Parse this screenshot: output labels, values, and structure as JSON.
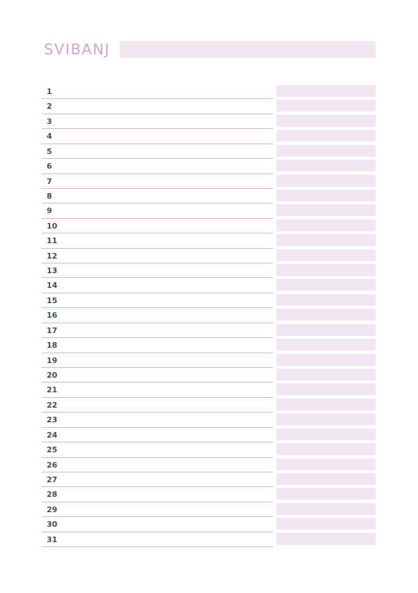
{
  "header": {
    "month": "SVIBANJ"
  },
  "days": [
    "1",
    "2",
    "3",
    "4",
    "5",
    "6",
    "7",
    "8",
    "9",
    "10",
    "11",
    "12",
    "13",
    "14",
    "15",
    "16",
    "17",
    "18",
    "19",
    "20",
    "21",
    "22",
    "23",
    "24",
    "25",
    "26",
    "27",
    "28",
    "29",
    "30",
    "31"
  ],
  "colors": {
    "accent_text": "#cfa6d2",
    "band_fill": "#f1e6f1",
    "rule_line": "#d6b3d9",
    "rule_line_alt": "#bfbfbf",
    "day_number": "#4a4a4a"
  }
}
